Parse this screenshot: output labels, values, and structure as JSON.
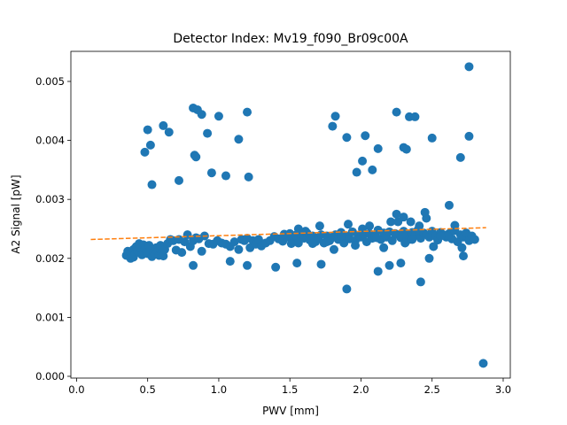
{
  "chart_data": {
    "type": "scatter",
    "title": "Detector Index: Mv19_f090_Br09c00A",
    "xlabel": "PWV [mm]",
    "ylabel": "A2 Signal [pW]",
    "xlim": [
      -0.04,
      3.05
    ],
    "ylim": [
      -3e-05,
      0.00551
    ],
    "xticks": [
      0.0,
      0.5,
      1.0,
      1.5,
      2.0,
      2.5,
      3.0
    ],
    "xtick_labels": [
      "0.0",
      "0.5",
      "1.0",
      "1.5",
      "2.0",
      "2.5",
      "3.0"
    ],
    "yticks": [
      0.0,
      0.001,
      0.002,
      0.003,
      0.004,
      0.005
    ],
    "ytick_labels": [
      "0.000",
      "0.001",
      "0.002",
      "0.003",
      "0.004",
      "0.005"
    ],
    "grid": false,
    "series": [
      {
        "name": "data",
        "kind": "scatter",
        "color": "#1f77b4",
        "x": [
          0.35,
          0.36,
          0.38,
          0.38,
          0.4,
          0.4,
          0.41,
          0.42,
          0.43,
          0.44,
          0.45,
          0.46,
          0.47,
          0.48,
          0.49,
          0.5,
          0.51,
          0.52,
          0.53,
          0.54,
          0.55,
          0.56,
          0.57,
          0.58,
          0.59,
          0.6,
          0.61,
          0.62,
          0.64,
          0.66,
          0.68,
          0.7,
          0.72,
          0.74,
          0.76,
          0.78,
          0.8,
          0.82,
          0.84,
          0.86,
          0.88,
          0.9,
          0.93,
          0.96,
          0.99,
          1.02,
          1.05,
          1.08,
          1.11,
          1.14,
          1.16,
          1.18,
          1.2,
          1.22,
          1.24,
          1.26,
          1.28,
          1.3,
          1.33,
          1.36,
          1.39,
          1.42,
          1.45,
          1.48,
          1.5,
          1.52,
          1.54,
          1.56,
          1.58,
          1.6,
          1.62,
          1.64,
          1.66,
          1.68,
          1.7,
          1.72,
          1.74,
          1.76,
          1.78,
          1.8,
          1.82,
          1.84,
          1.86,
          1.88,
          1.9,
          1.92,
          1.94,
          1.96,
          1.98,
          2.0,
          2.02,
          2.04,
          2.06,
          2.08,
          2.1,
          2.12,
          2.14,
          2.16,
          2.18,
          2.2,
          2.22,
          2.24,
          2.26,
          2.28,
          2.3,
          2.32,
          2.34,
          2.36,
          2.38,
          2.4,
          2.42,
          2.44,
          2.46,
          2.48,
          2.5,
          2.52,
          2.54,
          2.56,
          2.58,
          2.6,
          2.62,
          2.64,
          2.66,
          2.68,
          2.7,
          2.72,
          2.74,
          2.76,
          2.78,
          2.8,
          1.51,
          1.61,
          1.71,
          1.81,
          1.91,
          2.01,
          2.11,
          2.21,
          2.31,
          2.41,
          2.51,
          2.61,
          2.71,
          1.46,
          1.56,
          1.66,
          1.76,
          1.86,
          1.96,
          2.06,
          2.16,
          2.26,
          2.36,
          2.46,
          2.56,
          2.66,
          0.48,
          0.5,
          0.52,
          0.53,
          0.61,
          0.65,
          0.72,
          0.82,
          0.83,
          0.84,
          0.85,
          0.88,
          0.92,
          0.95,
          1.0,
          1.05,
          1.14,
          1.2,
          1.21,
          1.8,
          1.82,
          1.9,
          1.97,
          2.01,
          2.03,
          2.08,
          2.12,
          2.25,
          2.3,
          2.32,
          2.34,
          2.38,
          2.5,
          2.7,
          2.76,
          2.76,
          2.86,
          1.9,
          2.42,
          2.12,
          1.08,
          0.82,
          1.4,
          1.55,
          1.72,
          2.2,
          2.28,
          2.48,
          2.72,
          1.2,
          2.25,
          2.35,
          2.45,
          2.62,
          2.3
        ],
        "y": [
          0.00205,
          0.00212,
          0.002,
          0.0021,
          0.00215,
          0.00202,
          0.00208,
          0.0022,
          0.00212,
          0.00225,
          0.00218,
          0.00206,
          0.00223,
          0.00215,
          0.0021,
          0.00208,
          0.00222,
          0.00214,
          0.00203,
          0.0021,
          0.00207,
          0.00218,
          0.00212,
          0.00205,
          0.00222,
          0.0021,
          0.00204,
          0.00215,
          0.00225,
          0.00232,
          0.0023,
          0.00214,
          0.00232,
          0.0021,
          0.00228,
          0.0024,
          0.0022,
          0.0023,
          0.00235,
          0.00233,
          0.00212,
          0.00238,
          0.00225,
          0.00224,
          0.0023,
          0.00226,
          0.00224,
          0.0022,
          0.00228,
          0.00215,
          0.00232,
          0.0023,
          0.00234,
          0.00218,
          0.0023,
          0.00224,
          0.00232,
          0.00221,
          0.00226,
          0.0023,
          0.00237,
          0.00233,
          0.00229,
          0.00236,
          0.00242,
          0.0023,
          0.00239,
          0.00226,
          0.00237,
          0.00234,
          0.00243,
          0.00231,
          0.00238,
          0.00228,
          0.00235,
          0.0024,
          0.00226,
          0.00238,
          0.0023,
          0.00236,
          0.0024,
          0.00232,
          0.00244,
          0.00226,
          0.00238,
          0.00233,
          0.00245,
          0.0023,
          0.00239,
          0.00236,
          0.00241,
          0.00228,
          0.00242,
          0.00234,
          0.00238,
          0.00248,
          0.00232,
          0.00243,
          0.00236,
          0.00245,
          0.0023,
          0.00242,
          0.0024,
          0.00235,
          0.00246,
          0.00238,
          0.00232,
          0.00244,
          0.00239,
          0.00248,
          0.00234,
          0.00243,
          0.0024,
          0.00236,
          0.00246,
          0.00238,
          0.00231,
          0.00244,
          0.0024,
          0.00236,
          0.00242,
          0.00233,
          0.00247,
          0.00228,
          0.0024,
          0.00236,
          0.00243,
          0.0023,
          0.00238,
          0.00232,
          0.00225,
          0.00246,
          0.00255,
          0.00215,
          0.00258,
          0.0025,
          0.00235,
          0.00262,
          0.00226,
          0.00255,
          0.0022,
          0.00238,
          0.00218,
          0.00241,
          0.0025,
          0.00225,
          0.00228,
          0.00238,
          0.00222,
          0.00255,
          0.00218,
          0.00262,
          0.00232,
          0.00268,
          0.00238,
          0.00256,
          0.0038,
          0.00418,
          0.00392,
          0.00325,
          0.00425,
          0.00414,
          0.00332,
          0.00455,
          0.00375,
          0.00372,
          0.00452,
          0.00444,
          0.00412,
          0.00345,
          0.00441,
          0.0034,
          0.00402,
          0.00448,
          0.00338,
          0.00424,
          0.00441,
          0.00405,
          0.00346,
          0.00365,
          0.00408,
          0.0035,
          0.00386,
          0.00448,
          0.00388,
          0.00385,
          0.0044,
          0.0044,
          0.00404,
          0.00371,
          0.00525,
          0.00407,
          0.00022,
          0.00148,
          0.0016,
          0.00178,
          0.00195,
          0.00188,
          0.00185,
          0.00192,
          0.0019,
          0.00188,
          0.00192,
          0.002,
          0.00204,
          0.00188,
          0.00275,
          0.00262,
          0.00278,
          0.0029,
          0.0027
        ],
        "point_radius": 5
      },
      {
        "name": "fit",
        "kind": "line",
        "style": "dashed",
        "color": "#ff7f0e",
        "x": [
          0.1,
          2.88
        ],
        "y": [
          0.00232,
          0.00252
        ]
      }
    ]
  }
}
